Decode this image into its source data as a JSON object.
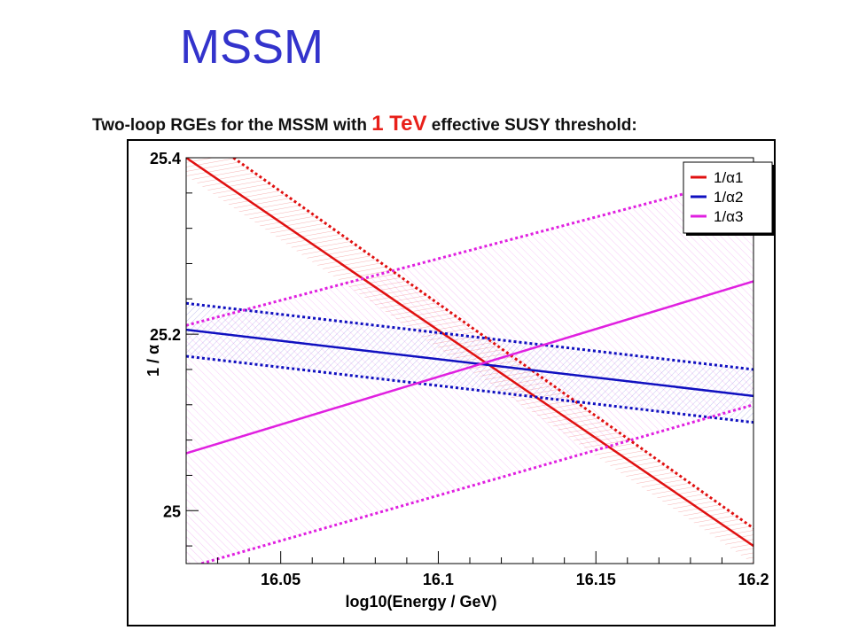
{
  "slide": {
    "title": "MSSM",
    "subtitle_pre": "Two-loop RGEs for the MSSM with ",
    "subtitle_highlight": "1 TeV",
    "subtitle_post": " effective SUSY threshold:"
  },
  "colors": {
    "title": "#3333cc",
    "highlight": "#e8201a"
  },
  "chart_data": {
    "type": "line",
    "xlabel": "log10(Energy / GeV)",
    "ylabel": "1 / α",
    "xlim": [
      16.02,
      16.2
    ],
    "ylim": [
      24.94,
      25.4
    ],
    "xticks": [
      16.05,
      16.1,
      16.15,
      16.2
    ],
    "yticks": [
      25,
      25.2,
      25.4
    ],
    "grid": false,
    "legend_position": "top-right",
    "series": [
      {
        "name": "1/α1",
        "color": "#e01010",
        "central": [
          [
            16.02,
            25.4
          ],
          [
            16.2,
            24.96
          ]
        ],
        "upper": [
          [
            16.035,
            25.4
          ],
          [
            16.2,
            24.98
          ]
        ],
        "lower": [
          [
            16.02,
            25.38
          ],
          [
            16.2,
            24.94
          ]
        ]
      },
      {
        "name": "1/α2",
        "color": "#1010c0",
        "central": [
          [
            16.02,
            25.205
          ],
          [
            16.2,
            25.13
          ]
        ],
        "upper": [
          [
            16.02,
            25.235
          ],
          [
            16.2,
            25.16
          ]
        ],
        "lower": [
          [
            16.02,
            25.175
          ],
          [
            16.2,
            25.1
          ]
        ]
      },
      {
        "name": "1/α3",
        "color": "#e020e0",
        "central": [
          [
            16.02,
            25.065
          ],
          [
            16.2,
            25.26
          ]
        ],
        "upper": [
          [
            16.02,
            25.21
          ],
          [
            16.2,
            25.38
          ]
        ],
        "lower": [
          [
            16.02,
            24.935
          ],
          [
            16.2,
            25.12
          ]
        ]
      }
    ]
  }
}
